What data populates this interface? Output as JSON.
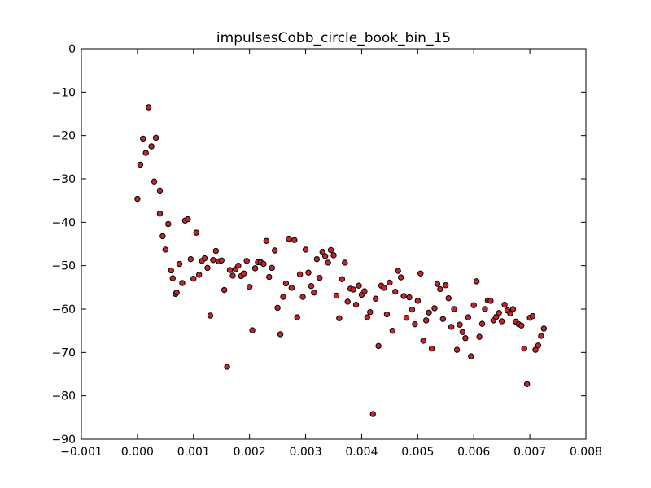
{
  "chart_data": {
    "type": "scatter",
    "title": "impulsesCobb_circle_book_bin_15",
    "xlabel": "",
    "ylabel": "",
    "xlim": [
      -0.001,
      0.008
    ],
    "ylim": [
      -90,
      0
    ],
    "xticks": [
      -0.001,
      0.0,
      0.001,
      0.002,
      0.003,
      0.004,
      0.005,
      0.006,
      0.007,
      0.008
    ],
    "xtick_labels": [
      "−0.001",
      "0.000",
      "0.001",
      "0.002",
      "0.003",
      "0.004",
      "0.005",
      "0.006",
      "0.007",
      "0.008"
    ],
    "yticks": [
      0,
      -10,
      -20,
      -30,
      -40,
      -50,
      -60,
      -70,
      -80,
      -90
    ],
    "ytick_labels": [
      "0",
      "−10",
      "−20",
      "−30",
      "−40",
      "−50",
      "−60",
      "−70",
      "−80",
      "−90"
    ],
    "grid": false,
    "marker_color": "#c0272d",
    "points": [
      [
        0.0,
        -34.6
      ],
      [
        5e-05,
        -26.7
      ],
      [
        0.0001,
        -20.7
      ],
      [
        0.00015,
        -24.0
      ],
      [
        0.0002,
        -13.5
      ],
      [
        0.00025,
        -22.5
      ],
      [
        0.0003,
        -30.6
      ],
      [
        0.00033,
        -20.5
      ],
      [
        0.0004,
        -32.7
      ],
      [
        0.0004,
        -38.0
      ],
      [
        0.00045,
        -43.2
      ],
      [
        0.0005,
        -46.3
      ],
      [
        0.00055,
        -40.4
      ],
      [
        0.0006,
        -51.1
      ],
      [
        0.00063,
        -52.9
      ],
      [
        0.00068,
        -56.5
      ],
      [
        0.0007,
        -56.2
      ],
      [
        0.00075,
        -49.6
      ],
      [
        0.0008,
        -54.0
      ],
      [
        0.00085,
        -39.6
      ],
      [
        0.0009,
        -39.3
      ],
      [
        0.00095,
        -48.5
      ],
      [
        0.001,
        -53.0
      ],
      [
        0.00105,
        -42.4
      ],
      [
        0.0011,
        -52.1
      ],
      [
        0.00115,
        -48.9
      ],
      [
        0.0012,
        -48.3
      ],
      [
        0.00125,
        -50.5
      ],
      [
        0.0013,
        -61.5
      ],
      [
        0.00135,
        -48.7
      ],
      [
        0.0014,
        -46.6
      ],
      [
        0.00145,
        -49.0
      ],
      [
        0.0015,
        -48.8
      ],
      [
        0.00155,
        -55.6
      ],
      [
        0.0016,
        -73.3
      ],
      [
        0.00165,
        -51.0
      ],
      [
        0.0017,
        -52.3
      ],
      [
        0.00175,
        -50.8
      ],
      [
        0.0018,
        -50.0
      ],
      [
        0.00185,
        -52.4
      ],
      [
        0.0019,
        -51.8
      ],
      [
        0.00195,
        -48.9
      ],
      [
        0.002,
        -54.9
      ],
      [
        0.00205,
        -64.9
      ],
      [
        0.0021,
        -50.6
      ],
      [
        0.00215,
        -49.2
      ],
      [
        0.0022,
        -49.2
      ],
      [
        0.00225,
        -49.6
      ],
      [
        0.0023,
        -44.3
      ],
      [
        0.00235,
        -52.6
      ],
      [
        0.0024,
        -50.5
      ],
      [
        0.00245,
        -46.5
      ],
      [
        0.0025,
        -59.7
      ],
      [
        0.00255,
        -65.8
      ],
      [
        0.0026,
        -57.2
      ],
      [
        0.00265,
        -54.1
      ],
      [
        0.0027,
        -43.8
      ],
      [
        0.00275,
        -55.1
      ],
      [
        0.0028,
        -44.1
      ],
      [
        0.00285,
        -61.9
      ],
      [
        0.0029,
        -52.0
      ],
      [
        0.00295,
        -57.2
      ],
      [
        0.003,
        -46.3
      ],
      [
        0.00305,
        -51.6
      ],
      [
        0.0031,
        -54.7
      ],
      [
        0.00315,
        -56.2
      ],
      [
        0.0032,
        -48.5
      ],
      [
        0.00325,
        -52.8
      ],
      [
        0.0033,
        -46.8
      ],
      [
        0.00335,
        -47.8
      ],
      [
        0.0034,
        -49.3
      ],
      [
        0.00345,
        -46.4
      ],
      [
        0.0035,
        -47.6
      ],
      [
        0.00355,
        -56.9
      ],
      [
        0.0036,
        -62.1
      ],
      [
        0.00365,
        -53.1
      ],
      [
        0.0037,
        -49.3
      ],
      [
        0.00375,
        -58.3
      ],
      [
        0.0038,
        -55.3
      ],
      [
        0.00385,
        -55.5
      ],
      [
        0.0039,
        -59.0
      ],
      [
        0.00395,
        -54.6
      ],
      [
        0.004,
        -56.7
      ],
      [
        0.00405,
        -55.9
      ],
      [
        0.0041,
        -61.9
      ],
      [
        0.00415,
        -60.7
      ],
      [
        0.0042,
        -84.2
      ],
      [
        0.00425,
        -57.6
      ],
      [
        0.0043,
        -68.5
      ],
      [
        0.00435,
        -54.6
      ],
      [
        0.0044,
        -55.1
      ],
      [
        0.00445,
        -61.2
      ],
      [
        0.0045,
        -53.9
      ],
      [
        0.00455,
        -65.0
      ],
      [
        0.0046,
        -56.0
      ],
      [
        0.00465,
        -51.2
      ],
      [
        0.0047,
        -52.7
      ],
      [
        0.00475,
        -57.0
      ],
      [
        0.0048,
        -62.0
      ],
      [
        0.00485,
        -57.3
      ],
      [
        0.0049,
        -60.1
      ],
      [
        0.00495,
        -63.5
      ],
      [
        0.005,
        -58.1
      ],
      [
        0.00505,
        -51.8
      ],
      [
        0.0051,
        -67.3
      ],
      [
        0.00515,
        -62.6
      ],
      [
        0.0052,
        -60.8
      ],
      [
        0.00525,
        -69.1
      ],
      [
        0.0053,
        -59.8
      ],
      [
        0.00535,
        -54.2
      ],
      [
        0.0054,
        -55.4
      ],
      [
        0.00545,
        -62.3
      ],
      [
        0.0055,
        -54.5
      ],
      [
        0.00555,
        -57.5
      ],
      [
        0.0056,
        -64.1
      ],
      [
        0.00565,
        -60.0
      ],
      [
        0.0057,
        -69.4
      ],
      [
        0.00575,
        -63.6
      ],
      [
        0.0058,
        -65.3
      ],
      [
        0.00585,
        -66.7
      ],
      [
        0.0059,
        -61.9
      ],
      [
        0.00595,
        -70.9
      ],
      [
        0.006,
        -59.1
      ],
      [
        0.00605,
        -53.6
      ],
      [
        0.0061,
        -66.4
      ],
      [
        0.00615,
        -63.4
      ],
      [
        0.0062,
        -60.0
      ],
      [
        0.00625,
        -58.0
      ],
      [
        0.0063,
        -58.1
      ],
      [
        0.00635,
        -62.6
      ],
      [
        0.0064,
        -61.8
      ],
      [
        0.00645,
        -60.9
      ],
      [
        0.0065,
        -62.8
      ],
      [
        0.00655,
        -59.0
      ],
      [
        0.0066,
        -60.3
      ],
      [
        0.00665,
        -61.0
      ],
      [
        0.0067,
        -60.0
      ],
      [
        0.00675,
        -62.9
      ],
      [
        0.0068,
        -63.5
      ],
      [
        0.00685,
        -63.8
      ],
      [
        0.0069,
        -69.1
      ],
      [
        0.00695,
        -77.3
      ],
      [
        0.007,
        -62.0
      ],
      [
        0.00705,
        -61.6
      ],
      [
        0.0071,
        -69.4
      ],
      [
        0.00715,
        -68.4
      ],
      [
        0.0072,
        -66.2
      ],
      [
        0.00725,
        -64.5
      ]
    ]
  }
}
